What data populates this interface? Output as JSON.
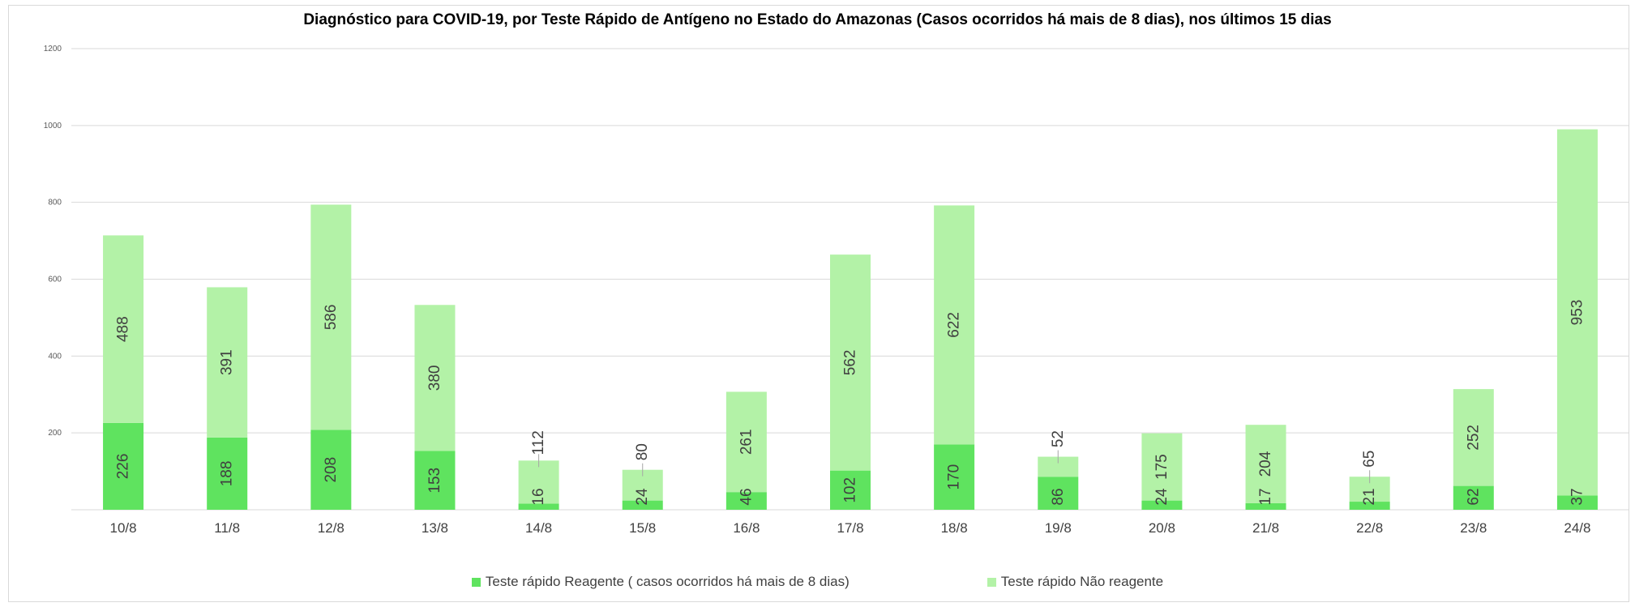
{
  "chart_data": {
    "type": "bar",
    "stacked": true,
    "title": "Diagnóstico para COVID-19, por  Teste Rápido de Antígeno no Estado do Amazonas (Casos ocorridos há mais de 8 dias), nos últimos 15 dias",
    "categories": [
      "10/8",
      "11/8",
      "12/8",
      "13/8",
      "14/8",
      "15/8",
      "16/8",
      "17/8",
      "18/8",
      "19/8",
      "20/8",
      "21/8",
      "22/8",
      "23/8",
      "24/8"
    ],
    "series": [
      {
        "name": "Teste rápido Reagente ( casos ocorridos há mais de 8 dias)",
        "color": "#5fe35f",
        "values": [
          226,
          188,
          208,
          153,
          16,
          24,
          46,
          102,
          170,
          86,
          24,
          17,
          21,
          62,
          37
        ]
      },
      {
        "name": "Teste rápido Não reagente",
        "color": "#b3f2a7",
        "values": [
          488,
          391,
          586,
          380,
          112,
          80,
          261,
          562,
          622,
          52,
          175,
          204,
          65,
          252,
          953
        ]
      }
    ],
    "ylim": [
      0,
      1200
    ],
    "yticks": [
      200,
      400,
      600,
      800,
      1000,
      1200
    ],
    "xlabel": "",
    "ylabel": "",
    "grid": true,
    "legend_position": "bottom"
  }
}
